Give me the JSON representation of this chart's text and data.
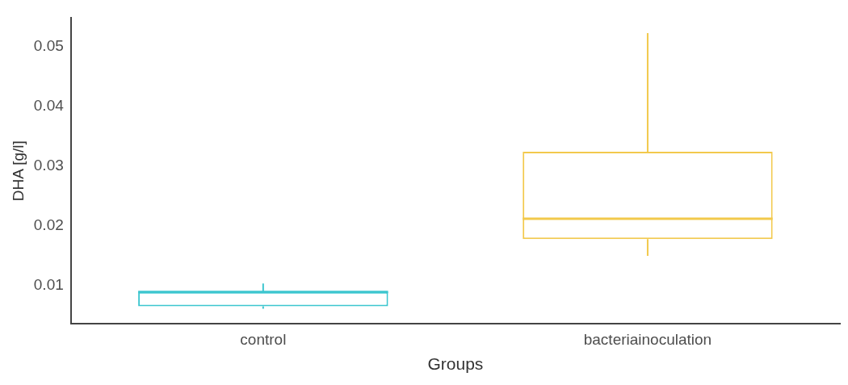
{
  "chart_data": {
    "type": "box",
    "xlabel": "Groups",
    "ylabel": "DHA [g/l]",
    "categories": [
      "control",
      "bacteriainoculation"
    ],
    "series": [
      {
        "boxes": [
          {
            "low": 0.0062,
            "q1": 0.0066,
            "median": 0.009,
            "q3": 0.009,
            "high": 0.0104
          },
          {
            "low": 0.015,
            "q1": 0.0178,
            "median": 0.0212,
            "q3": 0.0324,
            "high": 0.0522
          }
        ],
        "colors": [
          "#3cc6cf",
          "#f2c94c"
        ]
      }
    ],
    "ylim": [
      0.0037,
      0.0547
    ],
    "yticks": [
      0.01,
      0.02,
      0.03,
      0.04,
      0.05
    ],
    "grid": false,
    "legend": false
  }
}
